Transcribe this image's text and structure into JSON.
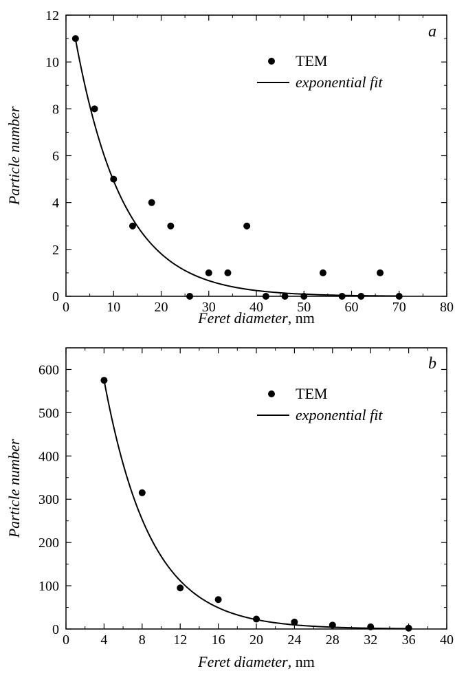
{
  "chart_data": [
    {
      "type": "scatter",
      "panel": "a",
      "xlabel_italic": "Feret diameter",
      "xlabel_unit": ", nm",
      "ylabel": "Particle number",
      "xlim": [
        0,
        80
      ],
      "ylim": [
        0,
        12
      ],
      "xticks": [
        "0",
        "10",
        "20",
        "30",
        "40",
        "50",
        "60",
        "70",
        "80"
      ],
      "yticks": [
        "0",
        "2",
        "4",
        "6",
        "8",
        "10",
        "12"
      ],
      "legend": {
        "placement": "top-right",
        "marker_label": "TEM",
        "line_label": "exponential fit"
      },
      "series": [
        {
          "name": "TEM",
          "kind": "points",
          "x": [
            2,
            6,
            10,
            14,
            18,
            22,
            26,
            30,
            34,
            38,
            42,
            46,
            50,
            54,
            58,
            62,
            66,
            70
          ],
          "y": [
            11,
            8,
            5,
            3,
            4,
            3,
            0,
            1,
            1,
            3,
            0,
            0,
            0,
            1,
            0,
            0,
            1,
            0
          ]
        },
        {
          "name": "exponential fit",
          "kind": "curve",
          "x_range": [
            2,
            70
          ],
          "amplitude": 13.4,
          "decay": 0.1
        }
      ]
    },
    {
      "type": "scatter",
      "panel": "b",
      "xlabel_italic": "Feret diameter",
      "xlabel_unit": ", nm",
      "ylabel": "Particle number",
      "xlim": [
        0,
        40
      ],
      "ylim": [
        0,
        650
      ],
      "xticks": [
        "0",
        "4",
        "8",
        "12",
        "16",
        "20",
        "24",
        "28",
        "32",
        "36",
        "40"
      ],
      "yticks": [
        "0",
        "100",
        "200",
        "300",
        "400",
        "500",
        "600"
      ],
      "legend": {
        "placement": "top-right",
        "marker_label": "TEM",
        "line_label": "exponential fit"
      },
      "series": [
        {
          "name": "TEM",
          "kind": "points",
          "x": [
            4,
            8,
            12,
            16,
            20,
            24,
            28,
            32,
            36
          ],
          "y": [
            575,
            315,
            95,
            68,
            23,
            16,
            9,
            5,
            2
          ]
        },
        {
          "name": "exponential fit",
          "kind": "curve",
          "x_range": [
            4,
            36
          ],
          "amplitude": 1306,
          "decay": 0.205
        }
      ]
    }
  ]
}
